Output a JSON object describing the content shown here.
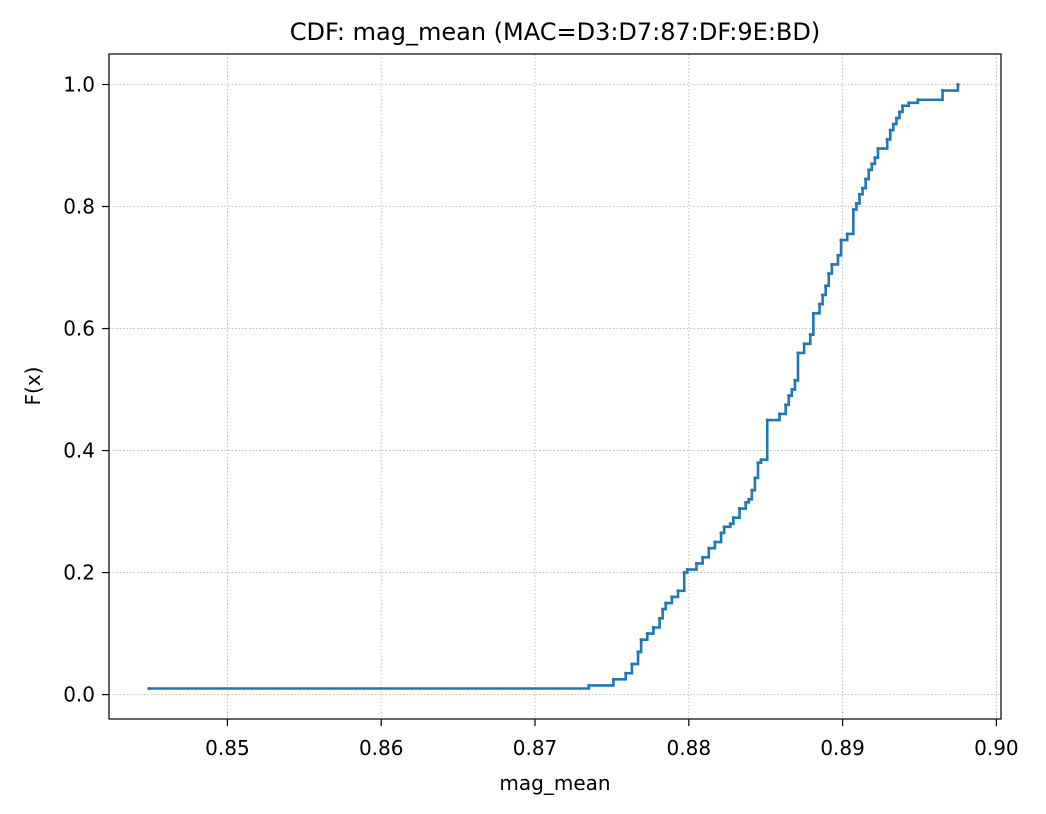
{
  "chart_data": {
    "type": "line",
    "title": "CDF: mag_mean (MAC=D3:D7:87:DF:9E:BD)",
    "xlabel": "mag_mean",
    "ylabel": "F(x)",
    "xlim": [
      0.8423,
      0.9003
    ],
    "ylim": [
      -0.04,
      1.05
    ],
    "x_ticks": [
      0.85,
      0.86,
      0.87,
      0.88,
      0.89,
      0.9
    ],
    "x_tick_labels": [
      "0.85",
      "0.86",
      "0.87",
      "0.88",
      "0.89",
      "0.90"
    ],
    "y_ticks": [
      0.0,
      0.2,
      0.4,
      0.6,
      0.8,
      1.0
    ],
    "y_tick_labels": [
      "0.0",
      "0.2",
      "0.4",
      "0.6",
      "0.8",
      "1.0"
    ],
    "grid": true,
    "step": true,
    "series_color": "#1f77b4",
    "series": [
      {
        "x": [
          0.8449,
          0.8735,
          0.8751,
          0.8759,
          0.8763,
          0.8767,
          0.8769,
          0.8773,
          0.8777,
          0.8781,
          0.8783,
          0.8785,
          0.8789,
          0.8793,
          0.8797,
          0.8799,
          0.8805,
          0.8809,
          0.8813,
          0.8817,
          0.8821,
          0.8823,
          0.8827,
          0.8829,
          0.8833,
          0.8837,
          0.8839,
          0.8841,
          0.8843,
          0.8845,
          0.8847,
          0.8851,
          0.8859,
          0.8863,
          0.8865,
          0.8867,
          0.8869,
          0.8871,
          0.8875,
          0.8879,
          0.8881,
          0.8885,
          0.8887,
          0.8889,
          0.8891,
          0.8893,
          0.8897,
          0.8899,
          0.8903,
          0.8907,
          0.8909,
          0.8911,
          0.8913,
          0.8915,
          0.8917,
          0.8919,
          0.8921,
          0.8923,
          0.8929,
          0.8931,
          0.8933,
          0.8935,
          0.8937,
          0.8939,
          0.8943,
          0.8949,
          0.8965,
          0.8975
        ],
        "y": [
          0.01,
          0.015,
          0.025,
          0.035,
          0.05,
          0.07,
          0.09,
          0.1,
          0.11,
          0.125,
          0.14,
          0.15,
          0.16,
          0.17,
          0.2,
          0.205,
          0.215,
          0.225,
          0.24,
          0.25,
          0.265,
          0.275,
          0.28,
          0.29,
          0.305,
          0.315,
          0.32,
          0.335,
          0.355,
          0.38,
          0.385,
          0.45,
          0.46,
          0.475,
          0.49,
          0.5,
          0.515,
          0.56,
          0.575,
          0.59,
          0.625,
          0.64,
          0.655,
          0.67,
          0.69,
          0.705,
          0.72,
          0.745,
          0.755,
          0.795,
          0.805,
          0.82,
          0.83,
          0.845,
          0.86,
          0.87,
          0.88,
          0.895,
          0.91,
          0.925,
          0.935,
          0.945,
          0.955,
          0.965,
          0.97,
          0.975,
          0.99,
          1.0
        ]
      }
    ]
  }
}
